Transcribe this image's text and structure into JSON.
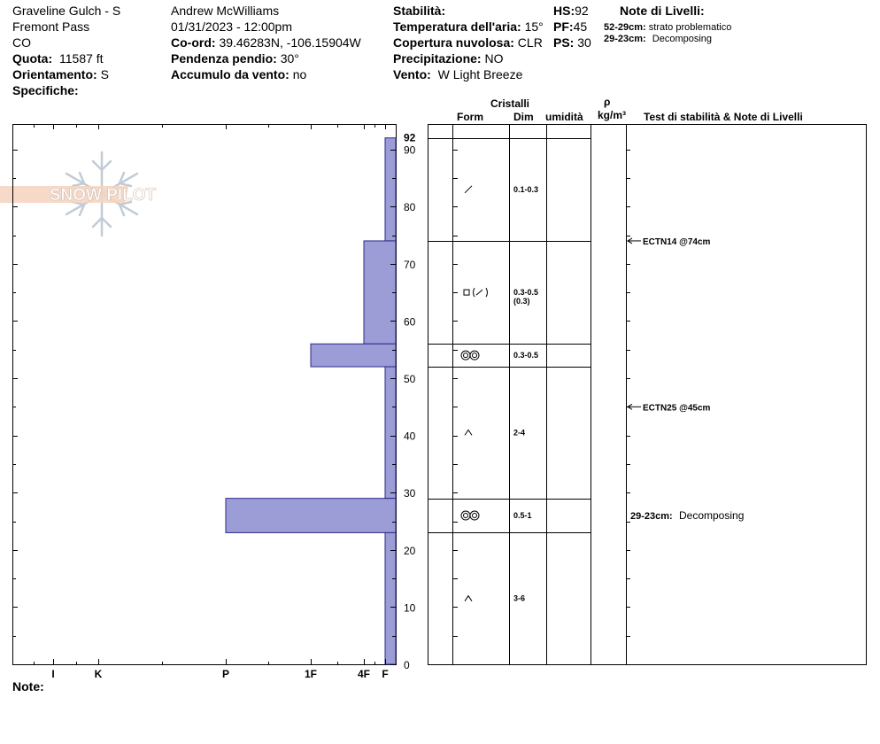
{
  "header": {
    "location": "Graveline Gulch - S",
    "area": "Fremont Pass",
    "state": "CO",
    "elevation_label": "Quota:",
    "elevation_value": "11587 ft",
    "aspect_label": "Orientamento:",
    "aspect_value": "S",
    "specifics_label": "Specifiche:",
    "observer": "Andrew McWilliams",
    "datetime": "01/31/2023 - 12:00pm",
    "coord_label": "Co-ord:",
    "coord_value": "39.46283N, -106.15904W",
    "slope_label": "Pendenza pendio:",
    "slope_value": "30°",
    "wind_loading_label": "Accumulo da vento:",
    "wind_loading_value": "no",
    "stability_label": "Stabilità:",
    "air_temp_label": "Temperatura dell'aria:",
    "air_temp_value": "15°",
    "cloud_label": "Copertura nuvolosa:",
    "cloud_value": "CLR",
    "precip_label": "Precipitazione:",
    "precip_value": "NO",
    "wind_label": "Vento:",
    "wind_value": "W Light Breeze",
    "hs_label": "HS:",
    "hs_value": "92",
    "pf_label": "PF:",
    "pf_value": "45",
    "ps_label": "PS:",
    "ps_value": "30",
    "layer_notes_title": "Note di Livelli:",
    "layer_notes": [
      {
        "range": "52-29cm:",
        "text": "strato problematico"
      },
      {
        "range": "29-23cm:",
        "text": "Decomposing"
      }
    ]
  },
  "logo": {
    "text": "SNOW PILOT"
  },
  "footer": {
    "notes_label": "Note:"
  },
  "columns": {
    "crystals": "Cristalli",
    "form": "Form",
    "dim": "Dim",
    "moisture": "umidità",
    "density_symbol": "ρ",
    "density_unit": "kg/m³",
    "tests": "Test di stabilità & Note di Livelli"
  },
  "colors": {
    "hardness_fill": "#9c9cd6",
    "hardness_stroke": "#2a2a8a"
  },
  "chart_data": {
    "type": "bar",
    "title": "",
    "ylabel": "",
    "ylim": [
      0,
      92
    ],
    "yticks": [
      0,
      10,
      20,
      30,
      40,
      50,
      60,
      70,
      80,
      90,
      92
    ],
    "hardness_scale": [
      "I",
      "K",
      "P",
      "1F",
      "4F",
      "F"
    ],
    "layers": [
      {
        "top": 92,
        "bottom": 74,
        "hardness": "F"
      },
      {
        "top": 74,
        "bottom": 56,
        "hardness": "4F"
      },
      {
        "top": 56,
        "bottom": 52,
        "hardness": "1F"
      },
      {
        "top": 52,
        "bottom": 29,
        "hardness": "F"
      },
      {
        "top": 29,
        "bottom": 23,
        "hardness": "P"
      },
      {
        "top": 23,
        "bottom": 0,
        "hardness": "F"
      }
    ],
    "grain_layers": [
      {
        "mid": 83,
        "form": "decomposing-icon",
        "size": "0.1-0.3",
        "size2": ""
      },
      {
        "mid": 65,
        "form": "faceted-decomposing-icon",
        "size": "0.3-0.5",
        "size2": "(0.3)"
      },
      {
        "mid": 54,
        "form": "melt-form-icon",
        "size": "0.3-0.5",
        "size2": ""
      },
      {
        "mid": 40.5,
        "form": "depth-hoar-icon",
        "size": "2-4",
        "size2": ""
      },
      {
        "mid": 26,
        "form": "melt-form-icon",
        "size": "0.5-1",
        "size2": ""
      },
      {
        "mid": 11.5,
        "form": "depth-hoar-icon",
        "size": "3-6",
        "size2": ""
      }
    ],
    "tests": [
      {
        "depth": 74,
        "label": "ECTN14 @74cm"
      },
      {
        "depth": 45,
        "label": "ECTN25 @45cm"
      }
    ],
    "layer_note": {
      "depth": 26,
      "range": "29-23cm:",
      "text": "Decomposing"
    }
  }
}
